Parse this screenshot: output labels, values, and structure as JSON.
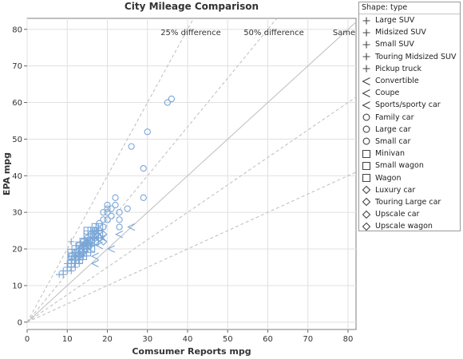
{
  "chart_data": {
    "type": "scatter",
    "title": "City Mileage Comparison",
    "xlabel": "Comsumer Reports mpg",
    "ylabel": "EPA mpg",
    "xlim": [
      0,
      82
    ],
    "ylim": [
      -2,
      83
    ],
    "xticks": [
      0,
      10,
      20,
      30,
      40,
      50,
      60,
      70,
      80
    ],
    "yticks": [
      0,
      10,
      20,
      30,
      40,
      50,
      60,
      70,
      80
    ],
    "grid": true,
    "legend_position": "right",
    "colors": {
      "marker": "#7aa6d6",
      "same_line": "#bdbdbd",
      "diff_lines": "#bdbdbd",
      "grid": "#e0e0e0"
    },
    "reference_lines": [
      {
        "label": "25% difference",
        "slope_lower": 0.75,
        "slope_upper": 1.3333,
        "style": "dashed"
      },
      {
        "label": "50% difference",
        "slope_lower": 0.5,
        "slope_upper": 2.0,
        "style": "dashed"
      },
      {
        "label": "Same",
        "slope": 1.0,
        "style": "solid"
      }
    ],
    "legend": {
      "title": "Shape: type",
      "items": [
        {
          "label": "Large SUV",
          "shape": "plus"
        },
        {
          "label": "Midsized SUV",
          "shape": "plus"
        },
        {
          "label": "Small SUV",
          "shape": "plus"
        },
        {
          "label": "Touring Midsized SUV",
          "shape": "plus"
        },
        {
          "label": "Pickup truck",
          "shape": "plus"
        },
        {
          "label": "Convertible",
          "shape": "less-than"
        },
        {
          "label": "Coupe",
          "shape": "less-than"
        },
        {
          "label": "Sports/sporty car",
          "shape": "less-than"
        },
        {
          "label": "Family car",
          "shape": "circle"
        },
        {
          "label": "Large car",
          "shape": "circle"
        },
        {
          "label": "Small car",
          "shape": "circle"
        },
        {
          "label": "Minivan",
          "shape": "square"
        },
        {
          "label": "Small wagon",
          "shape": "square"
        },
        {
          "label": "Wagon",
          "shape": "square"
        },
        {
          "label": "Luxury car",
          "shape": "diamond"
        },
        {
          "label": "Touring Large car",
          "shape": "diamond"
        },
        {
          "label": "Upscale car",
          "shape": "diamond"
        },
        {
          "label": "Upscale wagon",
          "shape": "diamond"
        }
      ]
    },
    "series": [
      {
        "shape": "plus",
        "points": [
          [
            8,
            13
          ],
          [
            9,
            13
          ],
          [
            9,
            14
          ],
          [
            10,
            14
          ],
          [
            10,
            15
          ],
          [
            10,
            16
          ],
          [
            11,
            14
          ],
          [
            11,
            15
          ],
          [
            11,
            16
          ],
          [
            11,
            17
          ],
          [
            11,
            22
          ],
          [
            12,
            15
          ],
          [
            12,
            16
          ],
          [
            12,
            17
          ],
          [
            12,
            18
          ],
          [
            13,
            16
          ],
          [
            13,
            17
          ],
          [
            13,
            19
          ],
          [
            13,
            20
          ],
          [
            14,
            18
          ],
          [
            14,
            20
          ],
          [
            14,
            21
          ],
          [
            15,
            20
          ],
          [
            15,
            22
          ],
          [
            16,
            21
          ]
        ]
      },
      {
        "shape": "less-than",
        "points": [
          [
            16,
            20
          ],
          [
            17,
            16
          ],
          [
            17,
            18
          ],
          [
            18,
            21
          ],
          [
            19,
            23
          ],
          [
            21,
            20
          ],
          [
            23,
            24
          ],
          [
            26,
            26
          ]
        ]
      },
      {
        "shape": "circle",
        "points": [
          [
            11,
            18
          ],
          [
            12,
            19
          ],
          [
            13,
            21
          ],
          [
            14,
            22
          ],
          [
            15,
            23
          ],
          [
            16,
            24
          ],
          [
            17,
            24
          ],
          [
            17,
            25
          ],
          [
            18,
            25
          ],
          [
            18,
            27
          ],
          [
            19,
            26
          ],
          [
            19,
            28
          ],
          [
            19,
            30
          ],
          [
            20,
            28
          ],
          [
            20,
            30
          ],
          [
            20,
            31
          ],
          [
            20,
            32
          ],
          [
            21,
            29
          ],
          [
            21,
            31
          ],
          [
            22,
            32
          ],
          [
            22,
            34
          ],
          [
            23,
            26
          ],
          [
            23,
            28
          ],
          [
            23,
            30
          ],
          [
            25,
            31
          ],
          [
            26,
            48
          ],
          [
            29,
            34
          ],
          [
            29,
            42
          ],
          [
            30,
            52
          ],
          [
            35,
            60
          ],
          [
            36,
            61
          ]
        ]
      },
      {
        "shape": "square",
        "points": [
          [
            11,
            16
          ],
          [
            11,
            17
          ],
          [
            11,
            18
          ],
          [
            11,
            19
          ],
          [
            12,
            17
          ],
          [
            12,
            18
          ],
          [
            12,
            19
          ],
          [
            12,
            20
          ],
          [
            13,
            17
          ],
          [
            13,
            18
          ],
          [
            13,
            19
          ],
          [
            13,
            20
          ],
          [
            13,
            21
          ],
          [
            14,
            18
          ],
          [
            14,
            19
          ],
          [
            14,
            20
          ],
          [
            14,
            21
          ],
          [
            14,
            22
          ],
          [
            15,
            19
          ],
          [
            15,
            20
          ],
          [
            15,
            21
          ],
          [
            15,
            22
          ],
          [
            15,
            24
          ],
          [
            15,
            25
          ],
          [
            16,
            20
          ],
          [
            16,
            22
          ],
          [
            16,
            24
          ],
          [
            16,
            25
          ],
          [
            17,
            22
          ],
          [
            17,
            24
          ],
          [
            17,
            25
          ],
          [
            17,
            26
          ],
          [
            18,
            24
          ],
          [
            18,
            26
          ]
        ]
      },
      {
        "shape": "diamond",
        "points": [
          [
            13,
            18
          ],
          [
            14,
            19
          ],
          [
            14,
            21
          ],
          [
            15,
            21
          ],
          [
            15,
            22
          ],
          [
            16,
            22
          ],
          [
            17,
            22
          ],
          [
            17,
            23
          ],
          [
            18,
            23
          ],
          [
            19,
            22
          ],
          [
            19,
            24
          ]
        ]
      }
    ]
  }
}
